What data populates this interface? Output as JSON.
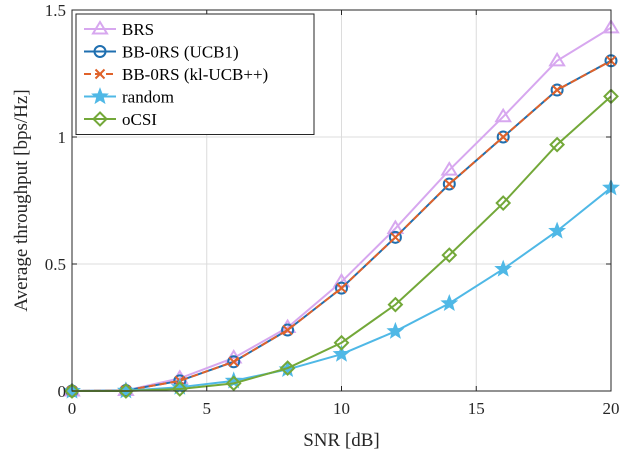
{
  "chart_data": {
    "type": "line",
    "xlabel": "SNR [dB]",
    "ylabel": "Average throughput [bps/Hz]",
    "xlim": [
      0,
      20
    ],
    "ylim": [
      0,
      1.5
    ],
    "xticks": [
      0,
      5,
      10,
      15,
      20
    ],
    "yticks": [
      0,
      0.5,
      1,
      1.5
    ],
    "xtick_labels": [
      "0",
      "5",
      "10",
      "15",
      "20"
    ],
    "ytick_labels": [
      "0",
      "0.5",
      "1",
      "1.5"
    ],
    "grid": true,
    "legend_position": "top-left",
    "x": [
      0,
      2,
      4,
      6,
      8,
      10,
      12,
      14,
      16,
      18,
      20
    ],
    "series": [
      {
        "name": "BRS",
        "color": "#d7a7ef",
        "marker": "triangle",
        "dash": "solid",
        "values": [
          0.0,
          0.002,
          0.05,
          0.13,
          0.25,
          0.43,
          0.64,
          0.87,
          1.08,
          1.3,
          1.43
        ]
      },
      {
        "name": "BB-0RS (UCB1)",
        "color": "#1f6fb0",
        "marker": "circle",
        "dash": "solid",
        "values": [
          0.0,
          0.002,
          0.04,
          0.115,
          0.24,
          0.405,
          0.605,
          0.815,
          1.0,
          1.185,
          1.3
        ]
      },
      {
        "name": "BB-0RS (kl-UCB++)",
        "color": "#e0622a",
        "marker": "cross",
        "dash": "dashed",
        "values": [
          0.0,
          0.002,
          0.04,
          0.115,
          0.24,
          0.405,
          0.605,
          0.815,
          1.0,
          1.185,
          1.3
        ]
      },
      {
        "name": "random",
        "color": "#4fb8e6",
        "marker": "star",
        "dash": "solid",
        "values": [
          0.0,
          0.001,
          0.015,
          0.04,
          0.085,
          0.145,
          0.235,
          0.345,
          0.48,
          0.63,
          0.8
        ]
      },
      {
        "name": "oCSI",
        "color": "#73a839",
        "marker": "diamond",
        "dash": "solid",
        "values": [
          0.0,
          0.0,
          0.008,
          0.03,
          0.09,
          0.19,
          0.34,
          0.535,
          0.74,
          0.97,
          1.16
        ]
      }
    ]
  }
}
